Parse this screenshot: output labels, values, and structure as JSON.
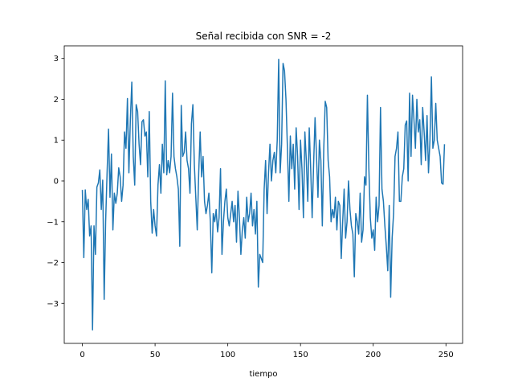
{
  "chart_data": {
    "type": "line",
    "title": "Señal recibida con SNR = -2",
    "x_label": "tiempo",
    "color": "#1f77b4",
    "grid": false,
    "xlim": [
      -12.45,
      261.45
    ],
    "xticks": [
      0,
      50,
      100,
      150,
      200,
      250
    ],
    "ylim": [
      -3.98,
      3.31
    ],
    "yticks": [
      {
        "value": -3,
        "label": "−3"
      },
      {
        "value": -2,
        "label": "−2"
      },
      {
        "value": -1,
        "label": "−1"
      },
      0,
      1,
      2,
      3
    ],
    "x": [
      0,
      1,
      2,
      3,
      4,
      5,
      6,
      7,
      8,
      9,
      10,
      11,
      12,
      13,
      14,
      15,
      16,
      17,
      18,
      19,
      20,
      21,
      22,
      23,
      24,
      25,
      26,
      27,
      28,
      29,
      30,
      31,
      32,
      33,
      34,
      35,
      36,
      37,
      38,
      39,
      40,
      41,
      42,
      43,
      44,
      45,
      46,
      47,
      48,
      49,
      50,
      51,
      52,
      53,
      54,
      55,
      56,
      57,
      58,
      59,
      60,
      61,
      62,
      63,
      64,
      65,
      66,
      67,
      68,
      69,
      70,
      71,
      72,
      73,
      74,
      75,
      76,
      77,
      78,
      79,
      80,
      81,
      82,
      83,
      84,
      85,
      86,
      87,
      88,
      89,
      90,
      91,
      92,
      93,
      94,
      95,
      96,
      97,
      98,
      99,
      100,
      101,
      102,
      103,
      104,
      105,
      106,
      107,
      108,
      109,
      110,
      111,
      112,
      113,
      114,
      115,
      116,
      117,
      118,
      119,
      120,
      121,
      122,
      123,
      124,
      125,
      126,
      127,
      128,
      129,
      130,
      131,
      132,
      133,
      134,
      135,
      136,
      137,
      138,
      139,
      140,
      141,
      142,
      143,
      144,
      145,
      146,
      147,
      148,
      149,
      150,
      151,
      152,
      153,
      154,
      155,
      156,
      157,
      158,
      159,
      160,
      161,
      162,
      163,
      164,
      165,
      166,
      167,
      168,
      169,
      170,
      171,
      172,
      173,
      174,
      175,
      176,
      177,
      178,
      179,
      180,
      181,
      182,
      183,
      184,
      185,
      186,
      187,
      188,
      189,
      190,
      191,
      192,
      193,
      194,
      195,
      196,
      197,
      198,
      199,
      200,
      201,
      202,
      203,
      204,
      205,
      206,
      207,
      208,
      209,
      210,
      211,
      212,
      213,
      214,
      215,
      216,
      217,
      218,
      219,
      220,
      221,
      222,
      223,
      224,
      225,
      226,
      227,
      228,
      229,
      230,
      231,
      232,
      233,
      234,
      235,
      236,
      237,
      238,
      239,
      240,
      241,
      242,
      243,
      244,
      245,
      246,
      247,
      248,
      249
    ],
    "values": [
      -0.22,
      -1.88,
      -0.22,
      -0.7,
      -0.45,
      -1.35,
      -1.1,
      -3.65,
      -1.1,
      -1.8,
      -0.15,
      -0.05,
      0.27,
      -0.7,
      0.02,
      -2.9,
      -1.0,
      0.2,
      1.27,
      -0.4,
      0.66,
      -1.2,
      -0.3,
      -0.55,
      -0.3,
      0.32,
      0.1,
      -0.5,
      -0.1,
      1.2,
      0.8,
      2.02,
      0.2,
      1.5,
      2.42,
      0.6,
      -0.1,
      1.87,
      1.7,
      0.9,
      0.4,
      1.45,
      1.5,
      1.1,
      1.2,
      0.1,
      1.7,
      -0.5,
      -1.28,
      -0.7,
      -1.1,
      -1.35,
      -0.1,
      0.4,
      -0.3,
      0.9,
      0.2,
      2.45,
      0.15,
      0.5,
      0.2,
      0.6,
      2.15,
      0.6,
      0.3,
      0.1,
      -0.2,
      -1.6,
      1.85,
      0.6,
      0.7,
      1.2,
      0.5,
      0.3,
      -0.3,
      1.4,
      1.87,
      0.4,
      -0.4,
      -1.2,
      0.2,
      1.2,
      0.1,
      0.6,
      -0.5,
      -0.8,
      -0.6,
      -0.3,
      -1.0,
      -2.25,
      -0.8,
      -1.0,
      -0.7,
      -1.25,
      -0.9,
      0.3,
      -1.8,
      -1.0,
      -0.5,
      -0.2,
      -0.9,
      -1.1,
      -0.8,
      -0.5,
      -1.0,
      -0.6,
      -1.5,
      -0.25,
      -0.9,
      -1.8,
      -1.2,
      -0.9,
      -1.4,
      -0.4,
      -1.0,
      -0.8,
      -0.3,
      -1.1,
      -0.7,
      -1.3,
      -0.5,
      -2.6,
      -1.8,
      -1.9,
      -2.0,
      -0.2,
      0.5,
      -0.8,
      0.2,
      0.9,
      0.0,
      0.5,
      0.7,
      0.2,
      1.0,
      2.98,
      0.2,
      0.9,
      2.88,
      2.7,
      2.0,
      0.8,
      -0.5,
      1.1,
      0.3,
      0.9,
      -0.2,
      1.3,
      0.6,
      -0.7,
      1.0,
      0.3,
      -0.9,
      1.2,
      0.5,
      -0.5,
      1.3,
      0.3,
      -0.9,
      0.4,
      1.55,
      0.6,
      -0.4,
      1.0,
      0.5,
      -1.1,
      0.8,
      1.95,
      1.8,
      0.5,
      0.1,
      -1.0,
      -0.7,
      -0.9,
      -0.4,
      -1.2,
      -0.5,
      -0.6,
      -1.9,
      -1.0,
      -0.2,
      -1.4,
      -1.0,
      0.0,
      -0.7,
      -1.1,
      -1.3,
      -2.35,
      -0.8,
      -1.0,
      -1.3,
      -0.3,
      -1.5,
      -1.2,
      0.1,
      -0.1,
      2.1,
      0.3,
      -0.9,
      -1.4,
      -1.2,
      -1.7,
      -0.4,
      -1.0,
      -0.6,
      1.8,
      -0.2,
      -0.5,
      -1.1,
      -1.6,
      -2.2,
      -0.6,
      -2.85,
      -1.4,
      -0.8,
      0.6,
      0.8,
      1.2,
      -0.5,
      -0.5,
      0.1,
      0.3,
      1.37,
      1.47,
      0.0,
      2.15,
      0.6,
      2.1,
      1.5,
      0.8,
      2.0,
      1.2,
      1.5,
      0.4,
      1.8,
      1.2,
      0.5,
      1.6,
      0.2,
      1.0,
      2.55,
      0.8,
      1.0,
      1.9,
      1.0,
      0.8,
      0.6,
      -0.05,
      -0.08,
      0.9
    ]
  }
}
